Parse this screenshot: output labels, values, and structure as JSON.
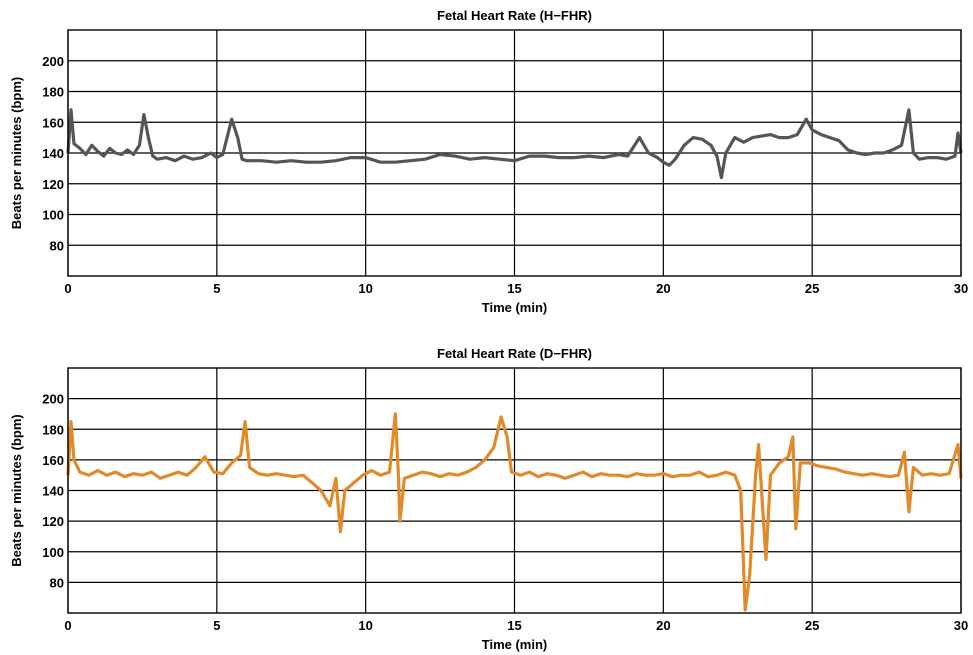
{
  "chart_data": [
    {
      "type": "line",
      "title": "Fetal Heart Rate (H−FHR)",
      "xlabel": "Time (min)",
      "ylabel": "Beats per minutes (bpm)",
      "xlim": [
        0,
        30
      ],
      "ylim": [
        60,
        220
      ],
      "xticks": [
        "0",
        "5",
        "10",
        "15",
        "20",
        "25",
        "30"
      ],
      "yticks": [
        "80",
        "100",
        "120",
        "140",
        "160",
        "180",
        "200"
      ],
      "grid": true,
      "color": "#555555",
      "series": [
        {
          "points": [
            [
              0.0,
              140
            ],
            [
              0.1,
              168
            ],
            [
              0.2,
              146
            ],
            [
              0.4,
              143
            ],
            [
              0.6,
              139
            ],
            [
              0.8,
              145
            ],
            [
              1.0,
              141
            ],
            [
              1.2,
              138
            ],
            [
              1.4,
              143
            ],
            [
              1.6,
              140
            ],
            [
              1.8,
              139
            ],
            [
              2.0,
              142
            ],
            [
              2.2,
              139
            ],
            [
              2.4,
              145
            ],
            [
              2.55,
              165
            ],
            [
              2.7,
              150
            ],
            [
              2.85,
              138
            ],
            [
              3.0,
              136
            ],
            [
              3.3,
              137
            ],
            [
              3.6,
              135
            ],
            [
              3.9,
              138
            ],
            [
              4.2,
              136
            ],
            [
              4.5,
              137
            ],
            [
              4.8,
              140
            ],
            [
              5.0,
              137
            ],
            [
              5.2,
              139
            ],
            [
              5.5,
              162
            ],
            [
              5.7,
              150
            ],
            [
              5.85,
              136
            ],
            [
              6.0,
              135
            ],
            [
              6.5,
              135
            ],
            [
              7.0,
              134
            ],
            [
              7.5,
              135
            ],
            [
              8.0,
              134
            ],
            [
              8.5,
              134
            ],
            [
              9.0,
              135
            ],
            [
              9.5,
              137
            ],
            [
              10.0,
              137
            ],
            [
              10.5,
              134
            ],
            [
              11.0,
              134
            ],
            [
              11.5,
              135
            ],
            [
              12.0,
              136
            ],
            [
              12.5,
              139
            ],
            [
              13.0,
              138
            ],
            [
              13.5,
              136
            ],
            [
              14.0,
              137
            ],
            [
              14.5,
              136
            ],
            [
              15.0,
              135
            ],
            [
              15.5,
              138
            ],
            [
              16.0,
              138
            ],
            [
              16.5,
              137
            ],
            [
              17.0,
              137
            ],
            [
              17.5,
              138
            ],
            [
              18.0,
              137
            ],
            [
              18.5,
              139
            ],
            [
              18.8,
              138
            ],
            [
              19.2,
              150
            ],
            [
              19.5,
              140
            ],
            [
              19.8,
              137
            ],
            [
              20.0,
              134
            ],
            [
              20.2,
              132
            ],
            [
              20.4,
              136
            ],
            [
              20.7,
              145
            ],
            [
              21.0,
              150
            ],
            [
              21.3,
              149
            ],
            [
              21.6,
              145
            ],
            [
              21.8,
              138
            ],
            [
              21.95,
              124
            ],
            [
              22.1,
              140
            ],
            [
              22.4,
              150
            ],
            [
              22.7,
              147
            ],
            [
              23.0,
              150
            ],
            [
              23.3,
              151
            ],
            [
              23.6,
              152
            ],
            [
              23.9,
              150
            ],
            [
              24.2,
              150
            ],
            [
              24.5,
              152
            ],
            [
              24.8,
              162
            ],
            [
              25.0,
              155
            ],
            [
              25.3,
              152
            ],
            [
              25.6,
              150
            ],
            [
              25.9,
              148
            ],
            [
              26.2,
              142
            ],
            [
              26.5,
              140
            ],
            [
              26.8,
              139
            ],
            [
              27.1,
              140
            ],
            [
              27.4,
              140
            ],
            [
              27.7,
              142
            ],
            [
              28.0,
              145
            ],
            [
              28.25,
              168
            ],
            [
              28.4,
              140
            ],
            [
              28.6,
              136
            ],
            [
              28.9,
              137
            ],
            [
              29.2,
              137
            ],
            [
              29.5,
              136
            ],
            [
              29.8,
              138
            ],
            [
              29.9,
              153
            ],
            [
              30.0,
              140
            ]
          ]
        }
      ]
    },
    {
      "type": "line",
      "title": "Fetal Heart Rate (D−FHR)",
      "xlabel": "Time (min)",
      "ylabel": "Beats per minutes (bpm)",
      "xlim": [
        0,
        30
      ],
      "ylim": [
        60,
        220
      ],
      "xticks": [
        "0",
        "5",
        "10",
        "15",
        "20",
        "25",
        "30"
      ],
      "yticks": [
        "80",
        "100",
        "120",
        "140",
        "160",
        "180",
        "200"
      ],
      "grid": true,
      "color": "#e08a2a",
      "series": [
        {
          "points": [
            [
              0.0,
              150
            ],
            [
              0.1,
              185
            ],
            [
              0.2,
              160
            ],
            [
              0.4,
              152
            ],
            [
              0.7,
              150
            ],
            [
              1.0,
              153
            ],
            [
              1.3,
              150
            ],
            [
              1.6,
              152
            ],
            [
              1.9,
              149
            ],
            [
              2.2,
              151
            ],
            [
              2.5,
              150
            ],
            [
              2.8,
              152
            ],
            [
              3.1,
              148
            ],
            [
              3.4,
              150
            ],
            [
              3.7,
              152
            ],
            [
              4.0,
              150
            ],
            [
              4.3,
              155
            ],
            [
              4.6,
              162
            ],
            [
              4.9,
              152
            ],
            [
              5.2,
              151
            ],
            [
              5.5,
              158
            ],
            [
              5.8,
              163
            ],
            [
              5.95,
              185
            ],
            [
              6.1,
              155
            ],
            [
              6.4,
              151
            ],
            [
              6.7,
              150
            ],
            [
              7.0,
              151
            ],
            [
              7.3,
              150
            ],
            [
              7.6,
              149
            ],
            [
              7.9,
              150
            ],
            [
              8.2,
              145
            ],
            [
              8.5,
              140
            ],
            [
              8.8,
              130
            ],
            [
              9.0,
              148
            ],
            [
              9.15,
              113
            ],
            [
              9.3,
              140
            ],
            [
              9.6,
              145
            ],
            [
              9.9,
              150
            ],
            [
              10.2,
              153
            ],
            [
              10.5,
              150
            ],
            [
              10.8,
              152
            ],
            [
              11.0,
              190
            ],
            [
              11.1,
              150
            ],
            [
              11.15,
              120
            ],
            [
              11.3,
              148
            ],
            [
              11.6,
              150
            ],
            [
              11.9,
              152
            ],
            [
              12.2,
              151
            ],
            [
              12.5,
              149
            ],
            [
              12.8,
              151
            ],
            [
              13.1,
              150
            ],
            [
              13.4,
              152
            ],
            [
              13.7,
              155
            ],
            [
              14.0,
              160
            ],
            [
              14.3,
              168
            ],
            [
              14.55,
              188
            ],
            [
              14.75,
              175
            ],
            [
              14.9,
              152
            ],
            [
              15.2,
              150
            ],
            [
              15.5,
              152
            ],
            [
              15.8,
              149
            ],
            [
              16.1,
              151
            ],
            [
              16.4,
              150
            ],
            [
              16.7,
              148
            ],
            [
              17.0,
              150
            ],
            [
              17.3,
              152
            ],
            [
              17.6,
              149
            ],
            [
              17.9,
              151
            ],
            [
              18.2,
              150
            ],
            [
              18.5,
              150
            ],
            [
              18.8,
              149
            ],
            [
              19.1,
              151
            ],
            [
              19.4,
              150
            ],
            [
              19.7,
              150
            ],
            [
              20.0,
              151
            ],
            [
              20.3,
              149
            ],
            [
              20.6,
              150
            ],
            [
              20.9,
              150
            ],
            [
              21.2,
              152
            ],
            [
              21.5,
              149
            ],
            [
              21.8,
              150
            ],
            [
              22.1,
              152
            ],
            [
              22.4,
              150
            ],
            [
              22.6,
              140
            ],
            [
              22.75,
              62
            ],
            [
              22.9,
              85
            ],
            [
              23.1,
              150
            ],
            [
              23.2,
              170
            ],
            [
              23.45,
              95
            ],
            [
              23.6,
              150
            ],
            [
              23.9,
              158
            ],
            [
              24.2,
              162
            ],
            [
              24.35,
              175
            ],
            [
              24.45,
              115
            ],
            [
              24.6,
              158
            ],
            [
              24.9,
              158
            ],
            [
              25.2,
              156
            ],
            [
              25.5,
              155
            ],
            [
              25.8,
              154
            ],
            [
              26.1,
              152
            ],
            [
              26.4,
              151
            ],
            [
              26.7,
              150
            ],
            [
              27.0,
              151
            ],
            [
              27.3,
              150
            ],
            [
              27.6,
              149
            ],
            [
              27.9,
              150
            ],
            [
              28.1,
              165
            ],
            [
              28.25,
              126
            ],
            [
              28.4,
              155
            ],
            [
              28.7,
              150
            ],
            [
              29.0,
              151
            ],
            [
              29.3,
              150
            ],
            [
              29.6,
              151
            ],
            [
              29.9,
              170
            ],
            [
              30.0,
              148
            ]
          ]
        }
      ]
    }
  ]
}
